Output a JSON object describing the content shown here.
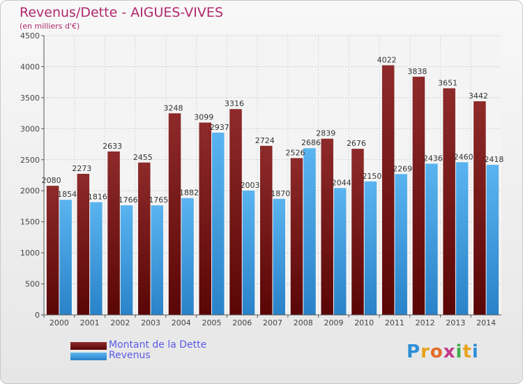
{
  "header": {
    "title": "Revenus/Dette - AIGUES-VIVES",
    "subtitle": "(en milliers d'€)"
  },
  "chart_data": {
    "type": "bar",
    "title": "Revenus/Dette - AIGUES-VIVES",
    "ylabel": "(en milliers d'€)",
    "xlabel": "",
    "ylim": [
      0,
      4500
    ],
    "yticks": [
      0,
      500,
      1000,
      1500,
      2000,
      2500,
      3000,
      3500,
      4000,
      4500
    ],
    "grid": true,
    "legend_position": "bottom-left",
    "categories": [
      "2000",
      "2001",
      "2002",
      "2003",
      "2004",
      "2005",
      "2006",
      "2007",
      "2008",
      "2009",
      "2010",
      "2011",
      "2012",
      "2013",
      "2014"
    ],
    "series": [
      {
        "name": "Montant de la Dette",
        "color": "#7a1a1a",
        "values": [
          2080,
          2273,
          2633,
          2455,
          3248,
          3099,
          3316,
          2724,
          2526,
          2839,
          2676,
          4022,
          3838,
          3651,
          3442
        ]
      },
      {
        "name": "Revenus",
        "color": "#3a9be0",
        "values": [
          1854,
          1816,
          1766,
          1765,
          1882,
          2937,
          2003,
          1870,
          2686,
          2044,
          2150,
          2269,
          2436,
          2460,
          2418
        ]
      }
    ]
  },
  "logo": {
    "letters": [
      "P",
      "r",
      "o",
      "x",
      "i",
      "t",
      "i"
    ],
    "colors": [
      "#2e8fd6",
      "#e8a21c",
      "#e36b2a",
      "#c23a8a",
      "#3fae49",
      "#e8a21c",
      "#2e8fd6"
    ]
  }
}
